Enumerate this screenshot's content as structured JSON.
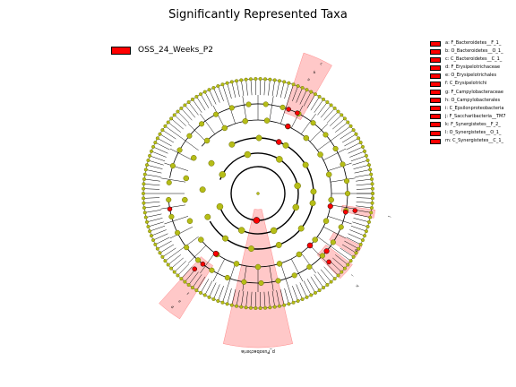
{
  "title": "Significantly Represented Taxa",
  "legend": {
    "label": "OSS_24_Weeks_P2",
    "color": "#ff0000"
  },
  "key": [
    "a: F_Bacteroidetes__F_1_",
    "b: O_Bacteroidetes__O_1_",
    "c: C_Bacteroidetes__C_1_",
    "d: F_Erysipelotrichaceae",
    "e: O_Erysipelotrichales",
    "f: C_Erysipelotrichi",
    "g: F_Campylobacteraceae",
    "h: O_Campylobacterales",
    "i: C_Epsilonproteobacteria",
    "j: F_Saccharibacteria__TM7",
    "k: F_Synergistetes__F_2_",
    "l: O_Synergistetes__O_1_",
    "m: C_Synergistetes__C_1_"
  ],
  "wedge_labels": {
    "phylum_bottom": "p_Fusobacteria",
    "top_right_1": "c",
    "top_right_2": "b",
    "top_right_3": "a",
    "right": "j",
    "right_lower": "g",
    "lower_right_1": "i",
    "lower_right_2": "h",
    "lower_left_1": "f",
    "lower_left_2": "e",
    "lower_left_3": "d"
  },
  "colors": {
    "node": "#b5bd17",
    "highlight": "#ff0000",
    "wedge": "#ffaaaa"
  }
}
